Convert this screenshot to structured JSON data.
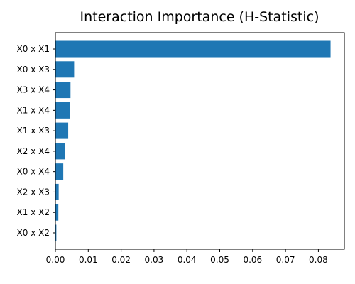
{
  "chart_data": {
    "type": "bar",
    "orientation": "horizontal",
    "title": "Interaction Importance (H-Statistic)",
    "xlabel": "",
    "ylabel": "",
    "categories": [
      "X0 x X1",
      "X0 x X3",
      "X3 x X4",
      "X1 x X4",
      "X1 x X3",
      "X2 x X4",
      "X0 x X4",
      "X2 x X3",
      "X1 x X2",
      "X0 x X2"
    ],
    "values": [
      0.0837,
      0.0057,
      0.0046,
      0.0044,
      0.0039,
      0.0029,
      0.0024,
      0.001,
      0.0009,
      0.0003
    ],
    "xlim": [
      0,
      0.0879
    ],
    "xticks": [
      0.0,
      0.01,
      0.02,
      0.03,
      0.04,
      0.05,
      0.06,
      0.07,
      0.08
    ],
    "xtick_labels": [
      "0.00",
      "0.01",
      "0.02",
      "0.03",
      "0.04",
      "0.05",
      "0.06",
      "0.07",
      "0.08"
    ],
    "bar_color": "#1f77b4",
    "grid": false,
    "legend": "none"
  }
}
